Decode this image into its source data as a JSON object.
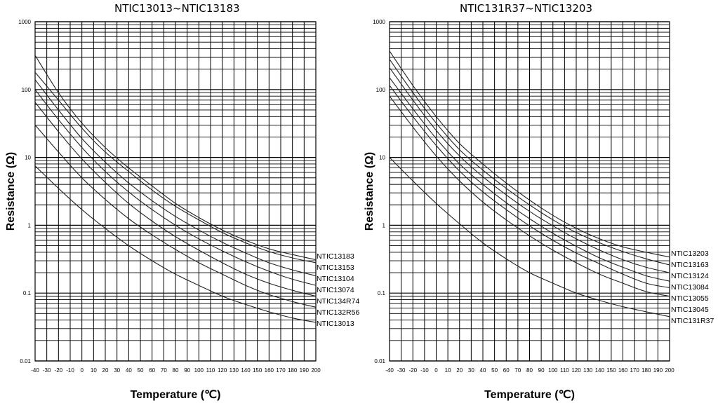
{
  "chart_data": [
    {
      "type": "line",
      "title": "NTIC13013~NTIC13183",
      "xlabel": "Temperature (℃)",
      "ylabel": "Resistance (Ω)",
      "xlim": [
        -40,
        200
      ],
      "ylim": [
        0.01,
        1000
      ],
      "yscale": "log",
      "grid": true,
      "x_ticks": [
        "-40",
        "-30",
        "-20",
        "-10",
        "0",
        "10",
        "20",
        "30",
        "40",
        "50",
        "60",
        "70",
        "80",
        "90",
        "100",
        "110",
        "120",
        "130",
        "140",
        "150",
        "160",
        "170",
        "180",
        "190",
        "200"
      ],
      "y_ticks": [
        "1000",
        "100",
        "10",
        "1",
        "0.1",
        "0.01"
      ],
      "x": [
        -40,
        -20,
        0,
        20,
        40,
        60,
        80,
        100,
        120,
        140,
        160,
        180,
        200
      ],
      "series": [
        {
          "name": "NTIC13183",
          "values": [
            320,
            90,
            32,
            14,
            7.0,
            3.8,
            2.1,
            1.3,
            0.85,
            0.6,
            0.45,
            0.37,
            0.31
          ]
        },
        {
          "name": "NTIC13153",
          "values": [
            180,
            70,
            27,
            12,
            6.2,
            3.3,
            1.9,
            1.2,
            0.78,
            0.55,
            0.41,
            0.33,
            0.28
          ]
        },
        {
          "name": "NTIC13104",
          "values": [
            140,
            50,
            19,
            8.5,
            4.2,
            2.3,
            1.35,
            0.85,
            0.56,
            0.39,
            0.28,
            0.22,
            0.18
          ]
        },
        {
          "name": "NTIC13074",
          "values": [
            100,
            36,
            14,
            6.2,
            3.1,
            1.7,
            1.0,
            0.63,
            0.42,
            0.29,
            0.21,
            0.16,
            0.13
          ]
        },
        {
          "name": "NTIC134R74",
          "values": [
            65,
            24,
            9.5,
            4.3,
            2.1,
            1.15,
            0.68,
            0.43,
            0.28,
            0.19,
            0.14,
            0.11,
            0.09
          ]
        },
        {
          "name": "NTIC132R56",
          "values": [
            30,
            12,
            5.0,
            2.4,
            1.25,
            0.72,
            0.44,
            0.28,
            0.19,
            0.13,
            0.095,
            0.075,
            0.062
          ]
        },
        {
          "name": "NTIC13013",
          "values": [
            7.5,
            3.5,
            1.7,
            0.9,
            0.5,
            0.3,
            0.19,
            0.13,
            0.09,
            0.068,
            0.053,
            0.043,
            0.037
          ]
        }
      ]
    },
    {
      "type": "line",
      "title": "NTIC131R37~NTIC13203",
      "xlabel": "Temperature (℃)",
      "ylabel": "Resistance (Ω)",
      "xlim": [
        -40,
        200
      ],
      "ylim": [
        0.01,
        1000
      ],
      "yscale": "log",
      "grid": true,
      "x_ticks": [
        "-40",
        "-30",
        "-20",
        "-10",
        "0",
        "10",
        "20",
        "30",
        "40",
        "50",
        "60",
        "70",
        "80",
        "90",
        "100",
        "110",
        "120",
        "130",
        "140",
        "150",
        "160",
        "170",
        "180",
        "190",
        "200"
      ],
      "y_ticks": [
        "1000",
        "100",
        "10",
        "1",
        "0.1",
        "0.01"
      ],
      "x": [
        -40,
        -20,
        0,
        20,
        40,
        60,
        80,
        100,
        120,
        140,
        160,
        180,
        200
      ],
      "series": [
        {
          "name": "NTIC13203",
          "values": [
            370,
            115,
            40,
            16,
            8.0,
            4.2,
            2.35,
            1.4,
            0.9,
            0.63,
            0.48,
            0.4,
            0.34
          ]
        },
        {
          "name": "NTIC13163",
          "values": [
            280,
            90,
            32,
            13,
            6.5,
            3.5,
            2.0,
            1.2,
            0.78,
            0.55,
            0.41,
            0.32,
            0.26
          ]
        },
        {
          "name": "NTIC13124",
          "values": [
            210,
            70,
            25,
            10.5,
            5.2,
            2.8,
            1.6,
            0.98,
            0.63,
            0.43,
            0.31,
            0.24,
            0.2
          ]
        },
        {
          "name": "NTIC13084",
          "values": [
            150,
            52,
            19,
            8.0,
            4.0,
            2.15,
            1.25,
            0.76,
            0.49,
            0.33,
            0.24,
            0.18,
            0.15
          ]
        },
        {
          "name": "NTIC13055",
          "values": [
            115,
            40,
            15,
            6.3,
            3.1,
            1.7,
            0.98,
            0.6,
            0.39,
            0.27,
            0.19,
            0.14,
            0.12
          ]
        },
        {
          "name": "NTIC13045",
          "values": [
            80,
            28,
            10.5,
            4.5,
            2.2,
            1.2,
            0.7,
            0.43,
            0.28,
            0.19,
            0.14,
            0.105,
            0.09
          ]
        },
        {
          "name": "NTIC131R37",
          "values": [
            10,
            4.5,
            2.1,
            1.05,
            0.55,
            0.32,
            0.2,
            0.14,
            0.1,
            0.078,
            0.063,
            0.053,
            0.045
          ]
        }
      ]
    }
  ]
}
